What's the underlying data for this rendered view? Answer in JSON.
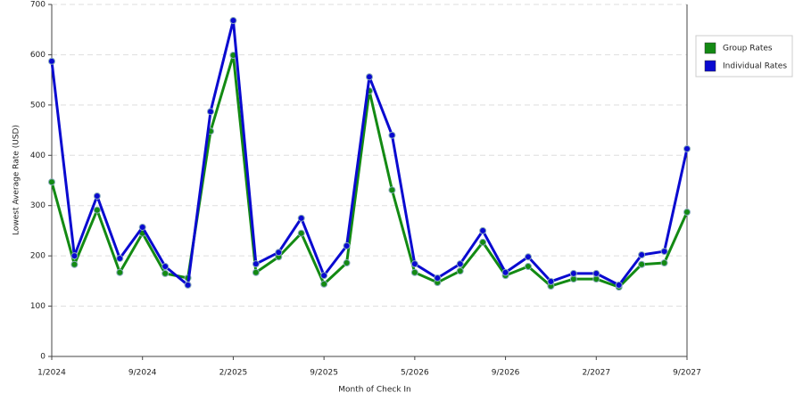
{
  "chart_data": {
    "type": "line",
    "x_label": "Month of Check In",
    "y_label": "Lowest Average Rate (USD)",
    "categories": [
      "1/2024",
      null,
      null,
      null,
      "9/2024",
      null,
      null,
      null,
      "2/2025",
      null,
      null,
      null,
      "9/2025",
      null,
      null,
      null,
      "5/2026",
      null,
      null,
      null,
      "9/2026",
      null,
      null,
      null,
      "2/2027",
      null,
      null,
      null,
      "9/2027"
    ],
    "series": [
      {
        "name": "Group Rates",
        "color": "#138a13",
        "values": [
          347,
          183,
          291,
          167,
          245,
          165,
          156,
          448,
          599,
          167,
          198,
          245,
          144,
          186,
          528,
          331,
          167,
          147,
          170,
          227,
          161,
          179,
          140,
          154,
          154,
          138,
          183,
          186,
          287
        ]
      },
      {
        "name": "Individual Rates",
        "color": "#0a0ad0",
        "values": [
          587,
          200,
          319,
          195,
          257,
          179,
          142,
          487,
          668,
          184,
          207,
          275,
          161,
          220,
          556,
          440,
          184,
          156,
          184,
          250,
          167,
          198,
          149,
          165,
          165,
          142,
          202,
          209,
          413
        ]
      }
    ],
    "ylim": [
      0,
      700
    ],
    "yticks": [
      0,
      100,
      200,
      300,
      400,
      500,
      600,
      700
    ],
    "grid": true,
    "legend": "right"
  }
}
